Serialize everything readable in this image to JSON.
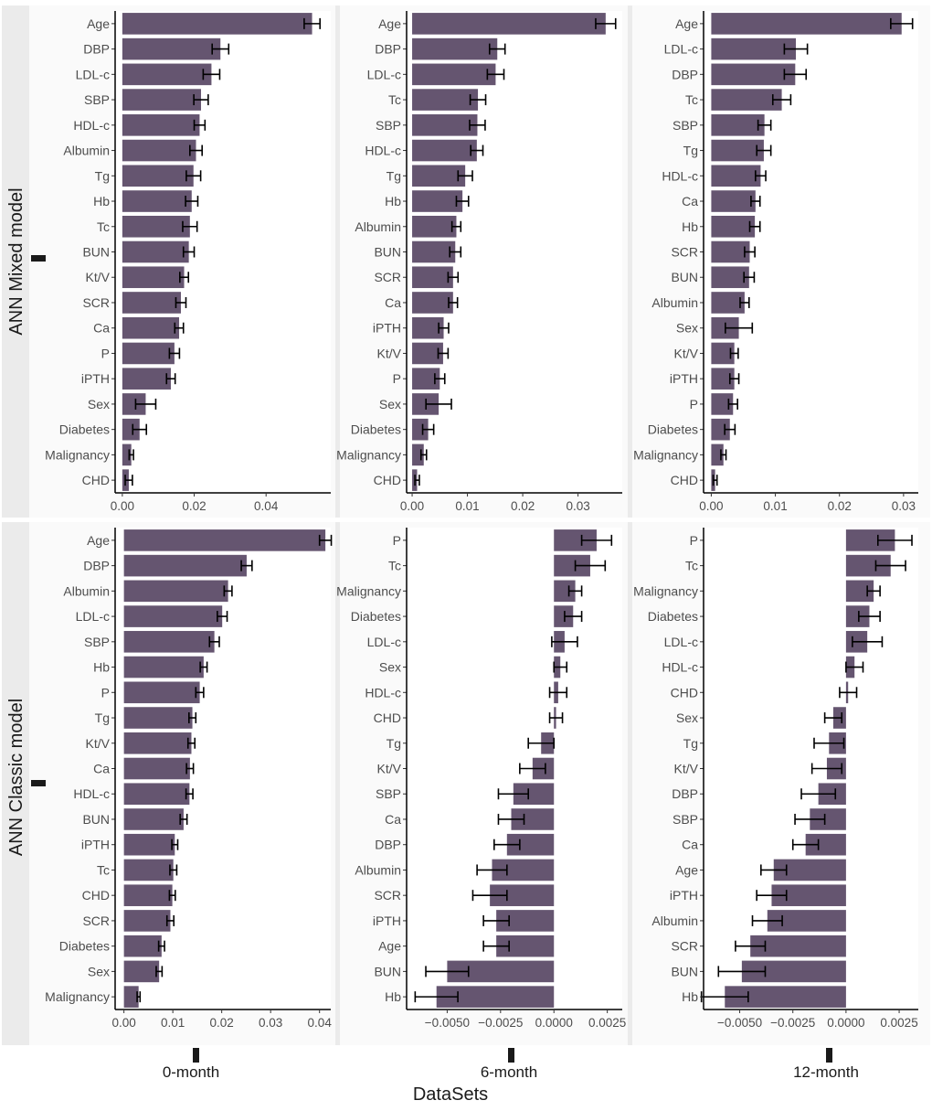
{
  "chart_data": {
    "type": "bar",
    "orientation": "horizontal",
    "xlabel": "DataSets",
    "row_labels": [
      "ANN Mixed model",
      "ANN Classic model"
    ],
    "column_labels": [
      "0-month",
      "6-month",
      "12-month"
    ],
    "bar_color": "#655570",
    "panel_background": "#fafafa",
    "row_background": "#ebebeb",
    "panels": [
      {
        "row_label": "ANN Mixed model",
        "column_label": "0-month",
        "xlim": [
          -0.002,
          0.058
        ],
        "ticks": [
          0,
          0.02,
          0.04
        ],
        "tick_labels": [
          "0.00",
          "0.02",
          "0.04"
        ],
        "categories": [
          "Age",
          "DBP",
          "LDL-c",
          "SBP",
          "HDL-c",
          "Albumin",
          "Tg",
          "Hb",
          "Tc",
          "BUN",
          "Kt/V",
          "SCR",
          "Ca",
          "P",
          "iPTH",
          "Sex",
          "Diabetes",
          "Malignancy",
          "CHD"
        ],
        "values": [
          0.0528,
          0.0273,
          0.0248,
          0.0219,
          0.0215,
          0.0205,
          0.0198,
          0.0193,
          0.0188,
          0.0185,
          0.0172,
          0.0163,
          0.0158,
          0.0145,
          0.0135,
          0.0065,
          0.0048,
          0.0025,
          0.0018
        ],
        "errors": [
          0.0022,
          0.0023,
          0.0023,
          0.002,
          0.0015,
          0.0017,
          0.002,
          0.0017,
          0.002,
          0.0015,
          0.0012,
          0.0014,
          0.0012,
          0.0014,
          0.0012,
          0.0028,
          0.0019,
          0.0006,
          0.001
        ]
      },
      {
        "row_label": "ANN Mixed model",
        "column_label": "6-month",
        "xlim": [
          -0.001,
          0.038
        ],
        "ticks": [
          0,
          0.01,
          0.02,
          0.03
        ],
        "tick_labels": [
          "0.00",
          "0.01",
          "0.02",
          "0.03"
        ],
        "categories": [
          "Age",
          "DBP",
          "LDL-c",
          "Tc",
          "SBP",
          "HDL-c",
          "Tg",
          "Hb",
          "Albumin",
          "BUN",
          "SCR",
          "Ca",
          "iPTH",
          "Kt/V",
          "P",
          "Sex",
          "Diabetes",
          "Malignancy",
          "CHD"
        ],
        "values": [
          0.035,
          0.0154,
          0.0151,
          0.0119,
          0.0118,
          0.0117,
          0.0096,
          0.0091,
          0.008,
          0.0078,
          0.0074,
          0.0074,
          0.0057,
          0.0056,
          0.005,
          0.0048,
          0.0029,
          0.0021,
          0.0009
        ],
        "errors": [
          0.0018,
          0.0014,
          0.0015,
          0.0014,
          0.0014,
          0.0011,
          0.0013,
          0.0011,
          0.0008,
          0.001,
          0.0009,
          0.0008,
          0.0009,
          0.0009,
          0.0009,
          0.0023,
          0.001,
          0.0005,
          0.0004
        ]
      },
      {
        "row_label": "ANN Mixed model",
        "column_label": "12-month",
        "xlim": [
          -0.0012,
          0.0323
        ],
        "ticks": [
          0,
          0.01,
          0.02,
          0.03
        ],
        "tick_labels": [
          "0.00",
          "0.01",
          "0.02",
          "0.03"
        ],
        "categories": [
          "Age",
          "LDL-c",
          "DBP",
          "Tc",
          "SBP",
          "Tg",
          "HDL-c",
          "Ca",
          "Hb",
          "SCR",
          "BUN",
          "Albumin",
          "Sex",
          "Kt/V",
          "iPTH",
          "P",
          "Diabetes",
          "Malignancy",
          "CHD"
        ],
        "values": [
          0.0297,
          0.0132,
          0.0131,
          0.011,
          0.0083,
          0.0082,
          0.0077,
          0.0069,
          0.0068,
          0.006,
          0.0059,
          0.0052,
          0.0043,
          0.0036,
          0.0036,
          0.0034,
          0.0029,
          0.0019,
          0.0006
        ],
        "errors": [
          0.0017,
          0.0018,
          0.0017,
          0.0014,
          0.001,
          0.0011,
          0.0008,
          0.0007,
          0.0008,
          0.0008,
          0.0008,
          0.0007,
          0.0021,
          0.0006,
          0.0007,
          0.0007,
          0.0008,
          0.0004,
          0.0003
        ]
      },
      {
        "row_label": "ANN Classic model",
        "column_label": "0-month",
        "xlim": [
          -0.0018,
          0.0423
        ],
        "ticks": [
          0,
          0.01,
          0.02,
          0.03,
          0.04
        ],
        "tick_labels": [
          "0.00",
          "0.01",
          "0.02",
          "0.03",
          "0.04"
        ],
        "categories": [
          "Age",
          "DBP",
          "Albumin",
          "LDL-c",
          "SBP",
          "Hb",
          "P",
          "Tg",
          "Kt/V",
          "Ca",
          "HDL-c",
          "BUN",
          "iPTH",
          "Tc",
          "CHD",
          "SCR",
          "Diabetes",
          "Sex",
          "Malignancy"
        ],
        "values": [
          0.0412,
          0.0251,
          0.0213,
          0.0201,
          0.0185,
          0.0163,
          0.0155,
          0.014,
          0.0138,
          0.0135,
          0.0134,
          0.0122,
          0.0104,
          0.0101,
          0.0099,
          0.0095,
          0.0077,
          0.0072,
          0.003
        ],
        "errors": [
          0.0012,
          0.0011,
          0.0008,
          0.001,
          0.001,
          0.0007,
          0.0008,
          0.0007,
          0.0007,
          0.0007,
          0.0007,
          0.0007,
          0.0006,
          0.0007,
          0.0006,
          0.0007,
          0.0006,
          0.0006,
          0.0003
        ]
      },
      {
        "row_label": "ANN Classic model",
        "column_label": "6-month",
        "xlim": [
          -0.0069,
          0.0032
        ],
        "ticks": [
          -0.005,
          -0.0025,
          0,
          0.0025
        ],
        "tick_labels": [
          "−0.0050",
          "−0.0025",
          "0.0000",
          "0.0025"
        ],
        "categories": [
          "P",
          "Tc",
          "Malignancy",
          "Diabetes",
          "LDL-c",
          "Sex",
          "HDL-c",
          "CHD",
          "Tg",
          "Kt/V",
          "SBP",
          "Ca",
          "DBP",
          "Albumin",
          "SCR",
          "iPTH",
          "Age",
          "BUN",
          "Hb"
        ],
        "values": [
          0.002,
          0.0017,
          0.001,
          0.0009,
          0.0005,
          0.0003,
          0.0002,
          0.0001,
          -0.0006,
          -0.001,
          -0.0019,
          -0.002,
          -0.0022,
          -0.0029,
          -0.003,
          -0.0027,
          -0.0027,
          -0.005,
          -0.0055
        ],
        "errors": [
          0.0007,
          0.0007,
          0.0003,
          0.0004,
          0.0006,
          0.0003,
          0.0004,
          0.0003,
          0.0006,
          0.0006,
          0.0007,
          0.0006,
          0.0006,
          0.0007,
          0.0008,
          0.0006,
          0.0006,
          0.001,
          0.001
        ]
      },
      {
        "row_label": "ANN Classic model",
        "column_label": "12-month",
        "xlim": [
          -0.0067,
          0.0034
        ],
        "ticks": [
          -0.005,
          -0.0025,
          0,
          0.0025
        ],
        "tick_labels": [
          "−0.0050",
          "−0.0025",
          "0.0000",
          "0.0025"
        ],
        "categories": [
          "P",
          "Tc",
          "Malignancy",
          "Diabetes",
          "LDL-c",
          "HDL-c",
          "CHD",
          "Sex",
          "Tg",
          "Kt/V",
          "DBP",
          "SBP",
          "Ca",
          "Age",
          "iPTH",
          "Albumin",
          "SCR",
          "BUN",
          "Hb"
        ],
        "values": [
          0.0023,
          0.0021,
          0.0013,
          0.0011,
          0.001,
          0.0004,
          0.0001,
          -0.0006,
          -0.0008,
          -0.0009,
          -0.0013,
          -0.0017,
          -0.0019,
          -0.0034,
          -0.0035,
          -0.0037,
          -0.0045,
          -0.0049,
          -0.0057
        ],
        "errors": [
          0.0008,
          0.0007,
          0.0003,
          0.0005,
          0.0007,
          0.0004,
          0.0004,
          0.0004,
          0.0007,
          0.0007,
          0.0008,
          0.0007,
          0.0006,
          0.0006,
          0.0007,
          0.0007,
          0.0007,
          0.0011,
          0.0011
        ]
      }
    ]
  }
}
